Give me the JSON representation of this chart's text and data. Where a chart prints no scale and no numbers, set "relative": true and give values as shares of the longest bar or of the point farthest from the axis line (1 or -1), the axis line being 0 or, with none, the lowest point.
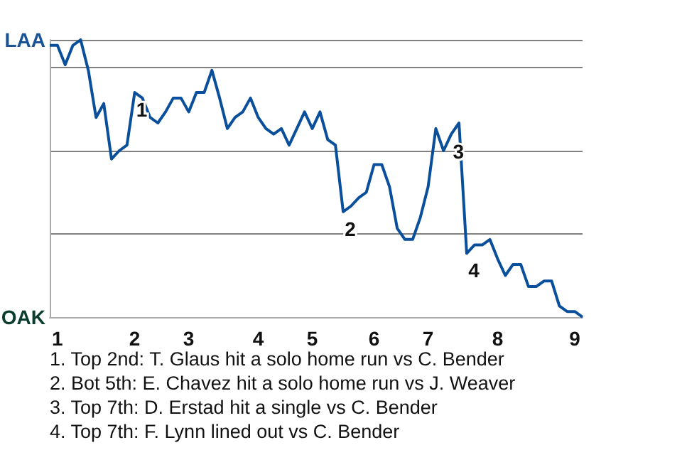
{
  "chart_data": {
    "type": "line",
    "relative": true,
    "categories": [
      null,
      "1",
      null,
      null,
      null,
      null,
      null,
      null,
      null,
      null,
      null,
      "2",
      null,
      null,
      null,
      null,
      null,
      null,
      "3",
      null,
      null,
      null,
      null,
      null,
      null,
      null,
      null,
      "4",
      null,
      null,
      null,
      null,
      null,
      null,
      "5",
      null,
      null,
      null,
      null,
      null,
      null,
      null,
      "6",
      null,
      null,
      null,
      null,
      null,
      null,
      "7",
      null,
      null,
      null,
      null,
      null,
      null,
      null,
      null,
      "8",
      null,
      null,
      null,
      null,
      null,
      null,
      null,
      null,
      null,
      "9",
      null
    ],
    "series": [
      {
        "color": "#0a4f9c",
        "values": [
          0.98,
          0.98,
          0.91,
          0.98,
          1,
          0.89,
          0.72,
          0.77,
          0.57,
          0.6,
          0.62,
          0.81,
          0.79,
          0.72,
          0.7,
          0.74,
          0.79,
          0.79,
          0.74,
          0.81,
          0.81,
          0.89,
          0.79,
          0.68,
          0.72,
          0.74,
          0.79,
          0.72,
          0.68,
          0.66,
          0.68,
          0.62,
          0.68,
          0.74,
          0.68,
          0.74,
          0.64,
          0.62,
          0.38,
          0.4,
          0.43,
          0.45,
          0.55,
          0.55,
          0.47,
          0.32,
          0.28,
          0.28,
          0.36,
          0.47,
          0.68,
          0.6,
          0.66,
          0.7,
          0.23,
          0.26,
          0.26,
          0.28,
          0.21,
          0.15,
          0.19,
          0.19,
          0.11,
          0.11,
          0.13,
          0.13,
          0.04,
          0.02,
          0.02,
          0
        ]
      }
    ],
    "grid": "y",
    "annotations": [
      "LAA",
      "OAK",
      "1",
      "2",
      "3",
      "4",
      "1. Top 2nd: T. Glaus hit a solo home run vs C. Bender",
      "2. Bot 5th: E. Chavez hit a solo home run vs J. Weaver",
      "3. Top 7th: D. Erstad hit a single vs C. Bender",
      "4. Top 7th: F. Lynn lined out vs C. Bender"
    ]
  }
}
